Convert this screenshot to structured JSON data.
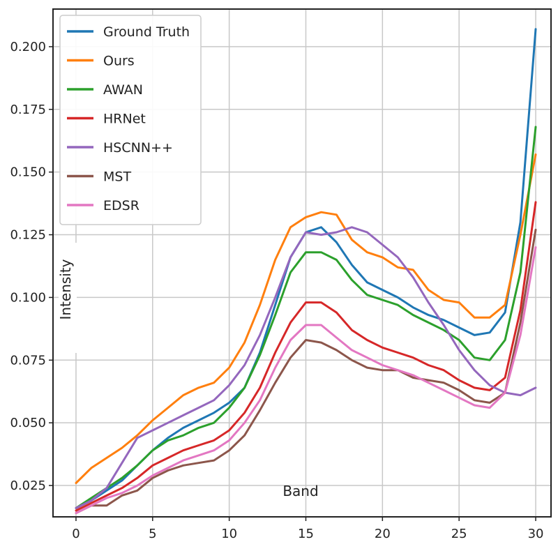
{
  "chart_data": {
    "type": "line",
    "title": "",
    "xlabel": "Band",
    "ylabel": "Intensity",
    "xlim": [
      -1.5,
      31
    ],
    "ylim": [
      0.0125,
      0.215
    ],
    "xticks": [
      0,
      5,
      10,
      15,
      20,
      25,
      30
    ],
    "yticks": [
      0.025,
      0.05,
      0.075,
      0.1,
      0.125,
      0.15,
      0.175,
      0.2
    ],
    "ytick_labels": [
      "0.025",
      "0.050",
      "0.075",
      "0.100",
      "0.125",
      "0.150",
      "0.175",
      "0.200"
    ],
    "grid": true,
    "legend_position": "top-left",
    "x": [
      0,
      1,
      2,
      3,
      4,
      5,
      6,
      7,
      8,
      9,
      10,
      11,
      12,
      13,
      14,
      15,
      16,
      17,
      18,
      19,
      20,
      21,
      22,
      23,
      24,
      25,
      26,
      27,
      28,
      29,
      30
    ],
    "series": [
      {
        "name": "Ground Truth",
        "color": "#1f77b4",
        "values": [
          0.016,
          0.019,
          0.023,
          0.027,
          0.033,
          0.039,
          0.044,
          0.048,
          0.051,
          0.054,
          0.058,
          0.064,
          0.078,
          0.097,
          0.116,
          0.126,
          0.128,
          0.122,
          0.113,
          0.106,
          0.103,
          0.1,
          0.096,
          0.093,
          0.091,
          0.088,
          0.085,
          0.086,
          0.094,
          0.13,
          0.207
        ]
      },
      {
        "name": "Ours",
        "color": "#ff7f0e",
        "values": [
          0.026,
          0.032,
          0.036,
          0.04,
          0.045,
          0.051,
          0.056,
          0.061,
          0.064,
          0.066,
          0.072,
          0.082,
          0.097,
          0.115,
          0.128,
          0.132,
          0.134,
          0.133,
          0.123,
          0.118,
          0.116,
          0.112,
          0.111,
          0.103,
          0.099,
          0.098,
          0.092,
          0.092,
          0.097,
          0.125,
          0.157
        ]
      },
      {
        "name": "AWAN",
        "color": "#2ca02c",
        "values": [
          0.016,
          0.02,
          0.024,
          0.028,
          0.033,
          0.039,
          0.043,
          0.045,
          0.048,
          0.05,
          0.056,
          0.064,
          0.077,
          0.093,
          0.11,
          0.118,
          0.118,
          0.115,
          0.107,
          0.101,
          0.099,
          0.097,
          0.093,
          0.09,
          0.087,
          0.083,
          0.076,
          0.075,
          0.083,
          0.11,
          0.168
        ]
      },
      {
        "name": "HRNet",
        "color": "#d62728",
        "values": [
          0.015,
          0.018,
          0.021,
          0.024,
          0.028,
          0.033,
          0.036,
          0.039,
          0.041,
          0.043,
          0.047,
          0.054,
          0.064,
          0.078,
          0.09,
          0.098,
          0.098,
          0.094,
          0.087,
          0.083,
          0.08,
          0.078,
          0.076,
          0.073,
          0.071,
          0.067,
          0.064,
          0.063,
          0.068,
          0.095,
          0.138
        ]
      },
      {
        "name": "HSCNN++",
        "color": "#9467bd",
        "values": [
          0.016,
          0.019,
          0.024,
          0.034,
          0.044,
          0.047,
          0.05,
          0.053,
          0.056,
          0.059,
          0.065,
          0.073,
          0.085,
          0.1,
          0.116,
          0.126,
          0.125,
          0.126,
          0.128,
          0.126,
          0.121,
          0.116,
          0.108,
          0.098,
          0.089,
          0.079,
          0.071,
          0.065,
          0.062,
          0.061,
          0.064
        ]
      },
      {
        "name": "MST",
        "color": "#8c564b",
        "values": [
          0.014,
          0.017,
          0.017,
          0.021,
          0.023,
          0.028,
          0.031,
          0.033,
          0.034,
          0.035,
          0.039,
          0.045,
          0.055,
          0.066,
          0.076,
          0.083,
          0.082,
          0.079,
          0.075,
          0.072,
          0.071,
          0.071,
          0.068,
          0.067,
          0.066,
          0.063,
          0.059,
          0.058,
          0.062,
          0.09,
          0.127
        ]
      },
      {
        "name": "EDSR",
        "color": "#e377c2",
        "values": [
          0.014,
          0.017,
          0.02,
          0.022,
          0.025,
          0.029,
          0.032,
          0.035,
          0.037,
          0.039,
          0.043,
          0.05,
          0.059,
          0.072,
          0.083,
          0.089,
          0.089,
          0.084,
          0.079,
          0.076,
          0.073,
          0.071,
          0.069,
          0.066,
          0.063,
          0.06,
          0.057,
          0.056,
          0.062,
          0.085,
          0.12
        ]
      }
    ]
  }
}
